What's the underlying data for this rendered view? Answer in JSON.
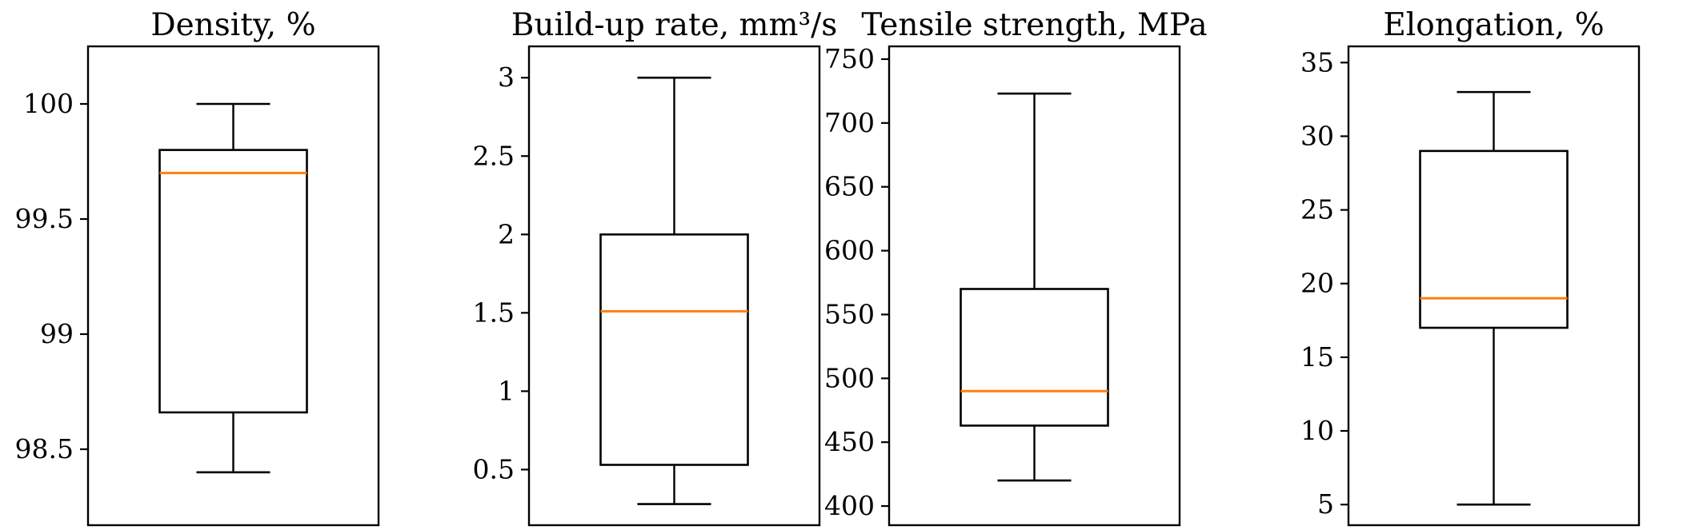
{
  "colors": {
    "box": "#000000",
    "median": "#ff7f0e",
    "background": "#ffffff"
  },
  "chart_data": [
    {
      "type": "boxplot",
      "title": "Density, %",
      "ylim": [
        98.17,
        100.25
      ],
      "ticks": [
        98.5,
        99,
        99.5,
        100
      ],
      "tick_labels": [
        "98.5",
        "99",
        "99.5",
        "100"
      ],
      "box": {
        "whisker_low": 98.4,
        "q1": 98.66,
        "median": 99.7,
        "q3": 99.8,
        "whisker_high": 100.0
      }
    },
    {
      "type": "boxplot",
      "title": "Build-up rate, mm³/s",
      "ylim": [
        0.145,
        3.2
      ],
      "ticks": [
        0.5,
        1,
        1.5,
        2,
        2.5,
        3
      ],
      "tick_labels": [
        "0.5",
        "1",
        "1.5",
        "2",
        "2.5",
        "3"
      ],
      "box": {
        "whisker_low": 0.28,
        "q1": 0.53,
        "median": 1.51,
        "q3": 2.0,
        "whisker_high": 3.0
      }
    },
    {
      "type": "boxplot",
      "title": "Tensile strength, MPa",
      "ylim": [
        385,
        760
      ],
      "ticks": [
        400,
        450,
        500,
        550,
        600,
        650,
        700,
        750
      ],
      "tick_labels": [
        "400",
        "450",
        "500",
        "550",
        "600",
        "650",
        "700",
        "750"
      ],
      "box": {
        "whisker_low": 420,
        "q1": 463,
        "median": 490,
        "q3": 570,
        "whisker_high": 723
      }
    },
    {
      "type": "boxplot",
      "title": "Elongation, %",
      "ylim": [
        3.6,
        36.1
      ],
      "ticks": [
        5,
        10,
        15,
        20,
        25,
        30,
        35
      ],
      "tick_labels": [
        "5",
        "10",
        "15",
        "20",
        "25",
        "30",
        "35"
      ],
      "box": {
        "whisker_low": 5,
        "q1": 17,
        "median": 19,
        "q3": 29,
        "whisker_high": 33
      }
    }
  ]
}
